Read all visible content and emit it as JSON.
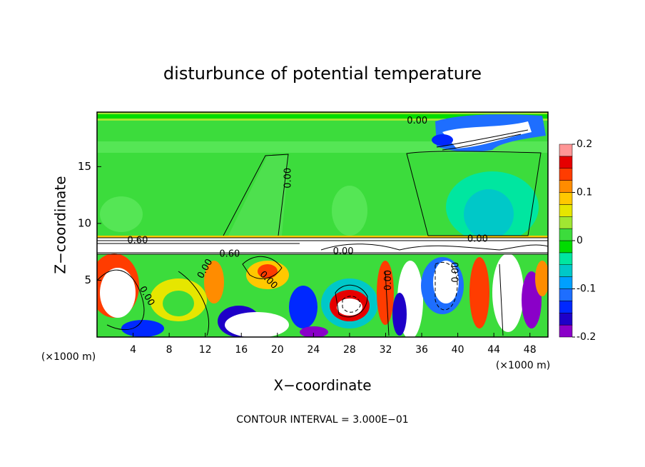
{
  "chart_data": {
    "type": "contour",
    "title": "disturbunce of potential temperature",
    "xlabel": "X−coordinate",
    "ylabel": "Z−coordinate",
    "x_unit_left": "(×1000 m)",
    "x_unit_right": "(×1000 m)",
    "footnote": "CONTOUR INTERVAL = 3.000E−01",
    "xlim": [
      0,
      50
    ],
    "ylim": [
      0,
      19.8
    ],
    "xticks": [
      4,
      8,
      12,
      16,
      20,
      24,
      28,
      32,
      36,
      40,
      44,
      48
    ],
    "yticks": [
      5,
      10,
      15
    ],
    "colorbar": {
      "clim": [
        -0.2,
        0.2
      ],
      "ticks": [
        -0.2,
        -0.1,
        0,
        0.1,
        0.2
      ],
      "colors": [
        "#8a00c8",
        "#1e00c8",
        "#0028ff",
        "#1e6eff",
        "#00a0ff",
        "#00c8c8",
        "#00e6a0",
        "#00dc00",
        "#3cdc3c",
        "#a0e632",
        "#e6e600",
        "#ffc800",
        "#ff8c00",
        "#ff3c00",
        "#e60000",
        "#ff9696"
      ]
    },
    "contour_labels": [
      {
        "text": "0.00",
        "x": 35.5,
        "y": 19.0,
        "angle": 0
      },
      {
        "text": "0.60",
        "x": 4.5,
        "y": 8.5,
        "angle": 0
      },
      {
        "text": "0.60",
        "x": 14.7,
        "y": 7.3,
        "angle": 0
      },
      {
        "text": "0.00",
        "x": 27.3,
        "y": 7.5,
        "angle": 0
      },
      {
        "text": "0.00",
        "x": 42.2,
        "y": 8.6,
        "angle": 0
      },
      {
        "text": "0.00",
        "x": 21.2,
        "y": 14.0,
        "angle": 90
      },
      {
        "text": "0.00",
        "x": 12.0,
        "y": 6.0,
        "angle": 60
      },
      {
        "text": "0.00",
        "x": 5.5,
        "y": 3.6,
        "angle": -60
      },
      {
        "text": "0.00",
        "x": 19.0,
        "y": 5.0,
        "angle": -45
      },
      {
        "text": "0.00",
        "x": 32.3,
        "y": 5.0,
        "angle": 90
      },
      {
        "text": "0.00",
        "x": 39.8,
        "y": 5.7,
        "angle": 90
      }
    ]
  }
}
